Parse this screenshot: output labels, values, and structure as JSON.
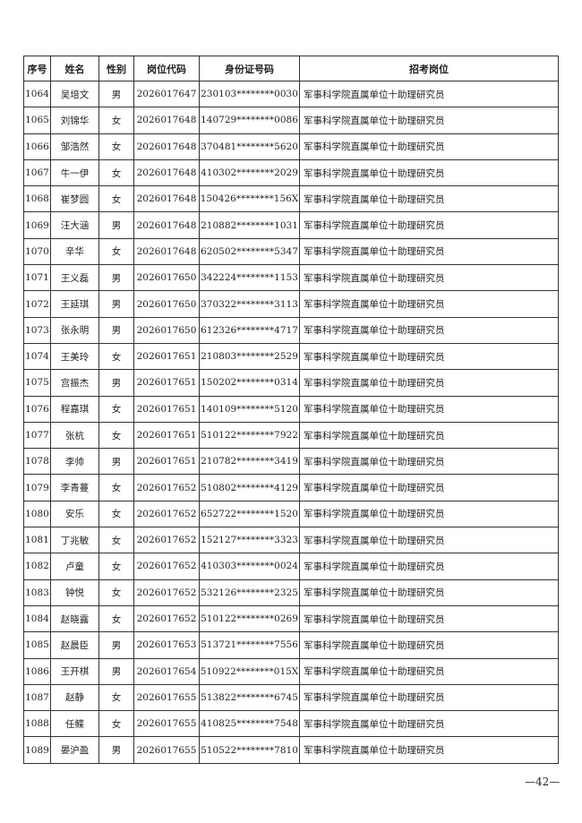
{
  "table": {
    "headers": [
      "序号",
      "姓名",
      "性别",
      "岗位代码",
      "身份证号码",
      "招考岗位"
    ],
    "rows": [
      [
        "1064",
        "吴培文",
        "男",
        "2026017647",
        "230103********0030",
        "军事科学院直属单位十助理研究员"
      ],
      [
        "1065",
        "刘锦华",
        "女",
        "2026017648",
        "140729********0086",
        "军事科学院直属单位十助理研究员"
      ],
      [
        "1066",
        "邹浩然",
        "女",
        "2026017648",
        "370481********5620",
        "军事科学院直属单位十助理研究员"
      ],
      [
        "1067",
        "牛一伊",
        "女",
        "2026017648",
        "410302********2029",
        "军事科学院直属单位十助理研究员"
      ],
      [
        "1068",
        "崔梦圆",
        "女",
        "2026017648",
        "150426********156X",
        "军事科学院直属单位十助理研究员"
      ],
      [
        "1069",
        "汪大涵",
        "男",
        "2026017648",
        "210882********1031",
        "军事科学院直属单位十助理研究员"
      ],
      [
        "1070",
        "辛华",
        "女",
        "2026017648",
        "620502********5347",
        "军事科学院直属单位十助理研究员"
      ],
      [
        "1071",
        "王义磊",
        "男",
        "2026017650",
        "342224********1153",
        "军事科学院直属单位十助理研究员"
      ],
      [
        "1072",
        "王延琪",
        "男",
        "2026017650",
        "370322********3113",
        "军事科学院直属单位十助理研究员"
      ],
      [
        "1073",
        "张永明",
        "男",
        "2026017650",
        "612326********4717",
        "军事科学院直属单位十助理研究员"
      ],
      [
        "1074",
        "王美玲",
        "女",
        "2026017651",
        "210803********2529",
        "军事科学院直属单位十助理研究员"
      ],
      [
        "1075",
        "宫振杰",
        "男",
        "2026017651",
        "150202********0314",
        "军事科学院直属单位十助理研究员"
      ],
      [
        "1076",
        "程嘉琪",
        "女",
        "2026017651",
        "140109********5120",
        "军事科学院直属单位十助理研究员"
      ],
      [
        "1077",
        "张杭",
        "女",
        "2026017651",
        "510122********7922",
        "军事科学院直属单位十助理研究员"
      ],
      [
        "1078",
        "李帅",
        "男",
        "2026017651",
        "210782********3419",
        "军事科学院直属单位十助理研究员"
      ],
      [
        "1079",
        "李青蔓",
        "女",
        "2026017652",
        "510802********4129",
        "军事科学院直属单位十助理研究员"
      ],
      [
        "1080",
        "安乐",
        "女",
        "2026017652",
        "652722********1520",
        "军事科学院直属单位十助理研究员"
      ],
      [
        "1081",
        "丁兆敏",
        "女",
        "2026017652",
        "152127********3323",
        "军事科学院直属单位十助理研究员"
      ],
      [
        "1082",
        "卢童",
        "女",
        "2026017652",
        "410303********0024",
        "军事科学院直属单位十助理研究员"
      ],
      [
        "1083",
        "钟悦",
        "女",
        "2026017652",
        "532126********2325",
        "军事科学院直属单位十助理研究员"
      ],
      [
        "1084",
        "赵晓露",
        "女",
        "2026017652",
        "510122********0269",
        "军事科学院直属单位十助理研究员"
      ],
      [
        "1085",
        "赵晨臣",
        "男",
        "2026017653",
        "513721********7556",
        "军事科学院直属单位十助理研究员"
      ],
      [
        "1086",
        "王开棋",
        "男",
        "2026017654",
        "510922********015X",
        "军事科学院直属单位十助理研究员"
      ],
      [
        "1087",
        "赵静",
        "女",
        "2026017655",
        "513822********6745",
        "军事科学院直属单位十助理研究员"
      ],
      [
        "1088",
        "任鲽",
        "女",
        "2026017655",
        "410825********7548",
        "军事科学院直属单位十助理研究员"
      ],
      [
        "1089",
        "晏沪盈",
        "男",
        "2026017655",
        "510522********7810",
        "军事科学院直属单位十助理研究员"
      ]
    ]
  },
  "page_number": "—42—"
}
